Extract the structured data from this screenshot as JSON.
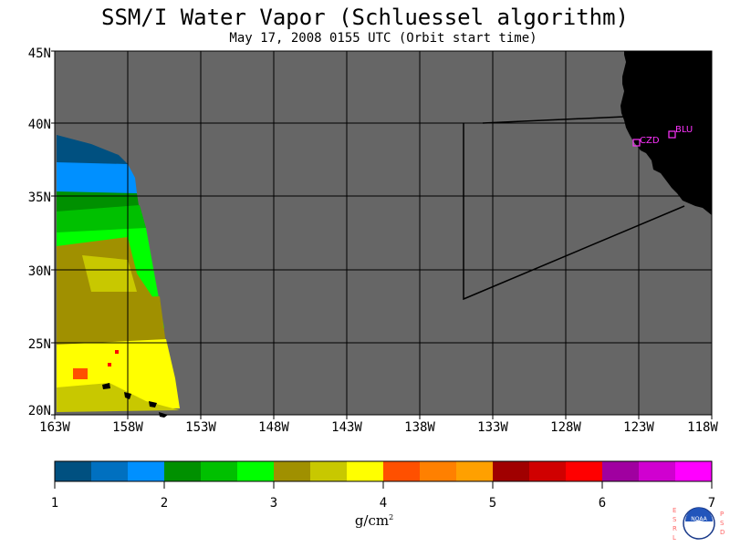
{
  "title": "SSM/I Water Vapor (Schluessel algorithm)",
  "subtitle": "May 17, 2008  0155 UTC  (Orbit start time)",
  "lat_labels": [
    "45N",
    "40N",
    "35N",
    "30N",
    "25N",
    "20N"
  ],
  "lon_labels": [
    "163W",
    "158W",
    "153W",
    "148W",
    "143W",
    "138W",
    "133W",
    "128W",
    "123W",
    "118W"
  ],
  "sites": [
    {
      "code": "CZD"
    },
    {
      "code": "BLU"
    }
  ],
  "colorbar": {
    "ticks": [
      "1",
      "2",
      "3",
      "4",
      "5",
      "6",
      "7"
    ],
    "units_text": "g/cm",
    "units_sup": "2",
    "colors": [
      "#005080",
      "#0070c0",
      "#0090ff",
      "#009000",
      "#00c000",
      "#00ff00",
      "#a09000",
      "#c8c800",
      "#ffff00",
      "#ff5000",
      "#ff8000",
      "#ffa000",
      "#a00000",
      "#d00000",
      "#ff0000",
      "#a000a0",
      "#d000d0",
      "#ff00ff"
    ]
  },
  "colors": {
    "no_data": "#666666",
    "land": "#000000",
    "grid": "#000000",
    "site": "#ff33ff"
  },
  "logo": {
    "letters_left": "ESRL",
    "letters_right": "PSD",
    "seal_text": "NOAA"
  }
}
